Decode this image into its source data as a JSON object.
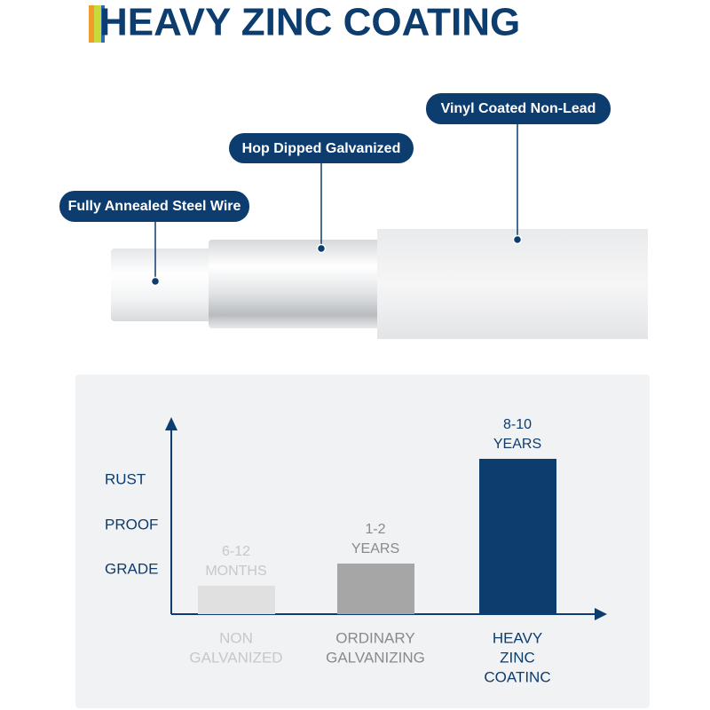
{
  "header": {
    "title": "HEAVY ZINC COATING"
  },
  "layers": [
    {
      "label": "Fully Annealed Steel Wire"
    },
    {
      "label": "Hop Dipped Galvanized"
    },
    {
      "label": "Vinyl Coated Non-Lead"
    }
  ],
  "chart": {
    "y_labels": [
      "RUST",
      "PROOF",
      "GRADE"
    ],
    "bars": [
      {
        "value_lines": [
          "6-12",
          "MONTHS"
        ],
        "category_lines": [
          "NON",
          "GALVANIZED"
        ]
      },
      {
        "value_lines": [
          "1-2",
          "YEARS"
        ],
        "category_lines": [
          "ORDINARY",
          "GALVANIZING"
        ]
      },
      {
        "value_lines": [
          "8-10",
          "YEARS"
        ],
        "category_lines": [
          "HEAVY",
          "ZINC",
          "COATINC"
        ]
      }
    ]
  }
}
